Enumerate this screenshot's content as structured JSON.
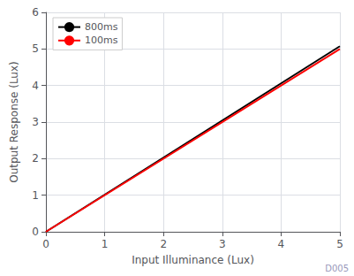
{
  "chart_data": {
    "type": "line",
    "x": [
      0,
      5
    ],
    "series": [
      {
        "name": "800ms",
        "color": "#000000",
        "values": [
          0,
          5.075
        ]
      },
      {
        "name": "100ms",
        "color": "#ff0000",
        "values": [
          0,
          5
        ]
      }
    ],
    "xlabel": "Input Illuminance (Lux)",
    "ylabel": "Output Response (Lux)",
    "xlim": [
      0,
      5
    ],
    "ylim": [
      0,
      6
    ],
    "xticks": [
      0,
      1,
      2,
      3,
      4,
      5
    ],
    "yticks": [
      0,
      1,
      2,
      3,
      4,
      5,
      6
    ],
    "grid": true,
    "legend": "upper left",
    "annotations": [
      "D005"
    ]
  }
}
